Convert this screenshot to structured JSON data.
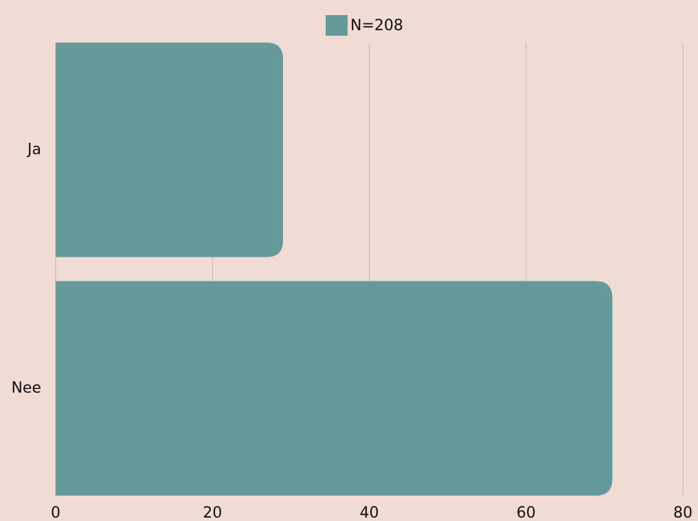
{
  "chart_data": {
    "type": "barh",
    "categories": [
      "Ja",
      "Nee"
    ],
    "series": [
      {
        "name": "N=208",
        "color": "#669999",
        "values": [
          29,
          71
        ]
      }
    ],
    "xlim": [
      0,
      80
    ],
    "xticks": [
      0,
      20,
      40,
      60,
      80
    ],
    "grid": true,
    "legend": "top"
  }
}
